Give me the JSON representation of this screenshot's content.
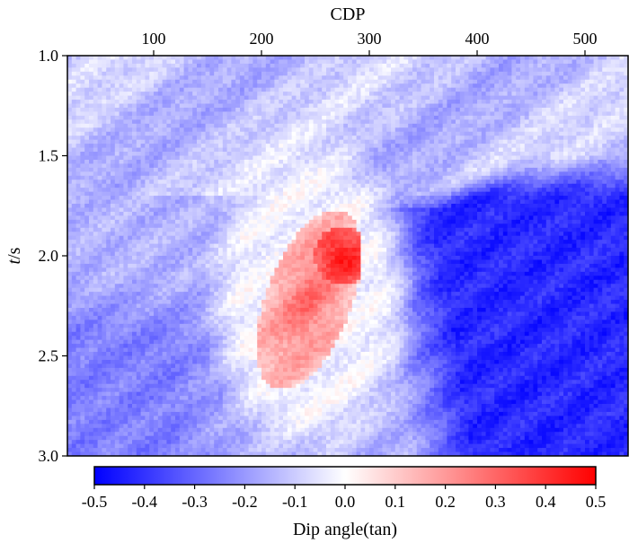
{
  "chart_data": {
    "type": "heatmap",
    "title": "",
    "xlabel": "CDP",
    "xlabel_position": "top",
    "ylabel_italic": "t",
    "ylabel_rest": "/s",
    "xlim": [
      20,
      540
    ],
    "ylim": [
      1.0,
      3.0
    ],
    "y_inverted": true,
    "xticks": [
      100,
      200,
      300,
      400,
      500
    ],
    "yticks": [
      1.0,
      1.5,
      2.0,
      2.5,
      3.0
    ],
    "colormap": "bwr",
    "colorbar": {
      "label": "Dip angle(tan)",
      "range": [
        -0.5,
        0.5
      ],
      "ticks": [
        -0.5,
        -0.4,
        -0.3,
        -0.2,
        -0.1,
        0.0,
        0.1,
        0.2,
        0.3,
        0.4,
        0.5
      ],
      "colors": [
        "#0000ff",
        "#ffffff",
        "#ff0000"
      ]
    },
    "field_regions": [
      {
        "name": "background",
        "value": -0.15
      },
      {
        "name": "upper-band",
        "x": [
          20,
          540
        ],
        "t": [
          1.0,
          1.7
        ],
        "value": -0.12
      },
      {
        "name": "right-negative-zone",
        "x": [
          320,
          540
        ],
        "t": [
          1.55,
          3.0
        ],
        "value": -0.42
      },
      {
        "name": "left-lower-zone",
        "x": [
          20,
          180
        ],
        "t": [
          2.1,
          3.0
        ],
        "value": -0.25
      },
      {
        "name": "positive-anomaly-upper",
        "x": [
          260,
          300
        ],
        "t": [
          1.85,
          2.15
        ],
        "value": 0.48
      },
      {
        "name": "positive-anomaly-core",
        "x": [
          200,
          290
        ],
        "t": [
          1.78,
          2.7
        ],
        "value": 0.3
      }
    ]
  }
}
